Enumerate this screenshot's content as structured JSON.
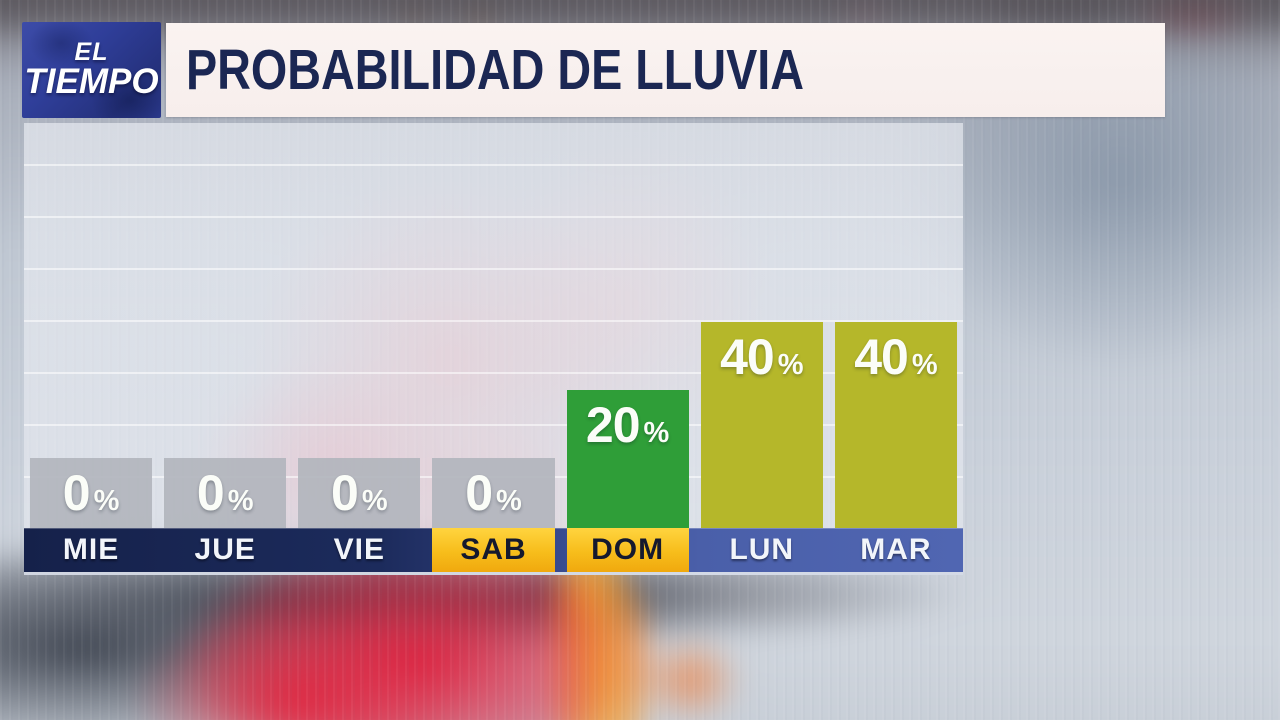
{
  "brand": {
    "line1": "EL",
    "line2": "TIEMPO"
  },
  "header": {
    "title": "PROBABILIDAD DE LLUVIA"
  },
  "chart_data": {
    "type": "bar",
    "title": "PROBABILIDAD DE LLUVIA",
    "unit": "%",
    "categories": [
      "MIE",
      "JUE",
      "VIE",
      "SAB",
      "DOM",
      "LUN",
      "MAR"
    ],
    "values": [
      0,
      0,
      0,
      0,
      20,
      40,
      40
    ],
    "value_labels": [
      "0%",
      "0%",
      "0%",
      "0%",
      "20%",
      "40%",
      "40%"
    ],
    "ylim": [
      0,
      100
    ],
    "gridlines": "horizontal every 10%",
    "legend": "none",
    "days": [
      {
        "label": "MIE",
        "value": 0,
        "bar_color": "rgba(178,181,189,0.92)",
        "cell_style": "navy"
      },
      {
        "label": "JUE",
        "value": 0,
        "bar_color": "rgba(178,181,189,0.92)",
        "cell_style": "navy"
      },
      {
        "label": "VIE",
        "value": 0,
        "bar_color": "rgba(178,181,189,0.92)",
        "cell_style": "navy"
      },
      {
        "label": "SAB",
        "value": 0,
        "bar_color": "rgba(178,181,189,0.92)",
        "cell_style": "gold"
      },
      {
        "label": "DOM",
        "value": 20,
        "bar_color": "#2f9e38",
        "cell_style": "gold"
      },
      {
        "label": "LUN",
        "value": 40,
        "bar_color": "#b5b72a",
        "cell_style": "blue"
      },
      {
        "label": "MAR",
        "value": 40,
        "bar_color": "#b5b72a",
        "cell_style": "blue"
      }
    ]
  },
  "colors": {
    "zero_bar": "rgba(178,181,189,0.92)",
    "green_bar": "#2f9e38",
    "olive_bar": "#b5b72a",
    "gold_top": "#ffd43f",
    "gold_bottom": "#f0a90e",
    "strip_navy": "#1b2a5b",
    "strip_blue": "#4a5fa9",
    "title_text": "#1b2753",
    "title_bg": "#f9f1ee",
    "logo_bg": "#2f3e99"
  }
}
